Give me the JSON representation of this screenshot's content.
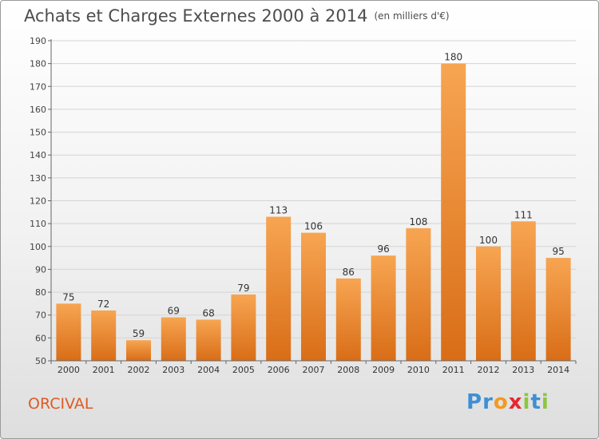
{
  "title": "Achats et Charges Externes 2000 à 2014",
  "unit_label": "(en milliers d'€)",
  "commune": "ORCIVAL",
  "brand": {
    "text": "Proxiti",
    "letters": [
      {
        "ch": "P",
        "color": "#3f8fd4"
      },
      {
        "ch": "r",
        "color": "#3f8fd4"
      },
      {
        "ch": "o",
        "color": "#f29a20"
      },
      {
        "ch": "x",
        "color": "#e8262f"
      },
      {
        "ch": "i",
        "color": "#8cc63f"
      },
      {
        "ch": "t",
        "color": "#3f8fd4"
      },
      {
        "ch": "i",
        "color": "#8cc63f"
      }
    ]
  },
  "colors": {
    "bar_top": "#f7a552",
    "bar_bottom": "#d96d17",
    "title": "#4d4d4d",
    "commune": "#e05a23"
  },
  "chart_data": {
    "type": "bar",
    "title": "Achats et Charges Externes 2000 à 2014",
    "subtitle": "(en milliers d'€)",
    "xlabel": "",
    "ylabel": "",
    "categories": [
      "2000",
      "2001",
      "2002",
      "2003",
      "2004",
      "2005",
      "2006",
      "2007",
      "2008",
      "2009",
      "2010",
      "2011",
      "2012",
      "2013",
      "2014"
    ],
    "values": [
      75,
      72,
      59,
      69,
      68,
      79,
      113,
      106,
      86,
      96,
      108,
      180,
      100,
      111,
      95
    ],
    "ylim": [
      50,
      190
    ],
    "yticks": [
      50,
      60,
      70,
      80,
      90,
      100,
      110,
      120,
      130,
      140,
      150,
      160,
      170,
      180,
      190
    ],
    "grid": true,
    "legend": "none"
  }
}
